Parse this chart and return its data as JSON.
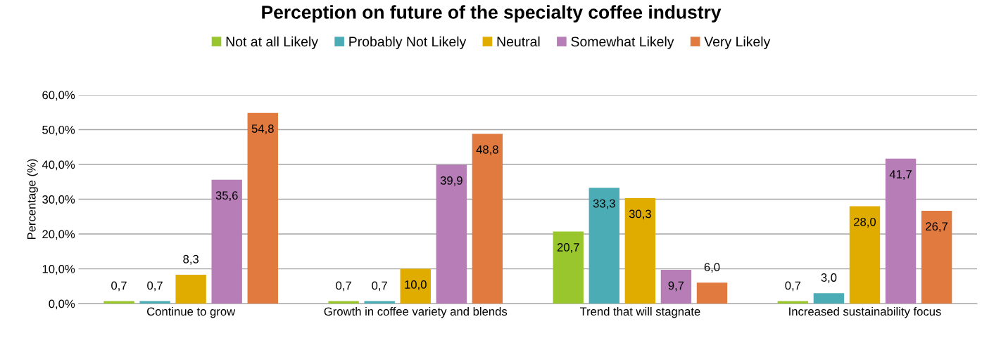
{
  "chart_data": {
    "type": "bar",
    "title": "Perception on future of the specialty coffee industry",
    "ylabel": "Percentage (%)",
    "categories": [
      "Continue to grow",
      "Growth in coffee variety and blends",
      "Trend that will stagnate",
      "Increased sustainability focus"
    ],
    "series": [
      {
        "name": "Not at all Likely",
        "color": "#99c62c",
        "values": [
          0.7,
          0.7,
          20.7,
          0.7
        ],
        "value_labels": [
          "0,7",
          "0,7",
          "20,7",
          "0,7"
        ]
      },
      {
        "name": "Probably Not Likely",
        "color": "#4bacb6",
        "values": [
          0.7,
          0.7,
          33.3,
          3.0
        ],
        "value_labels": [
          "0,7",
          "0,7",
          "33,3",
          "3,0"
        ]
      },
      {
        "name": "Neutral",
        "color": "#e0ac00",
        "values": [
          8.3,
          10.0,
          30.3,
          28.0
        ],
        "value_labels": [
          "8,3",
          "10,0",
          "30,3",
          "28,0"
        ]
      },
      {
        "name": "Somewhat Likely",
        "color": "#b67db7",
        "values": [
          35.6,
          39.9,
          9.7,
          41.7
        ],
        "value_labels": [
          "35,6",
          "39,9",
          "9,7",
          "41,7"
        ]
      },
      {
        "name": "Very Likely",
        "color": "#e07a3e",
        "values": [
          54.8,
          48.8,
          6.0,
          26.7
        ],
        "value_labels": [
          "54,8",
          "48,8",
          "6,0",
          "26,7"
        ]
      }
    ],
    "ylim": [
      0,
      60
    ],
    "yticks": [
      {
        "value": 0,
        "label": "0,0%"
      },
      {
        "value": 10,
        "label": "10,0%"
      },
      {
        "value": 20,
        "label": "20,0%"
      },
      {
        "value": 30,
        "label": "30,0%"
      },
      {
        "value": 40,
        "label": "40,0%"
      },
      {
        "value": 50,
        "label": "50,0%"
      },
      {
        "value": 60,
        "label": "60,0%"
      }
    ],
    "grid": "y",
    "legend": "top"
  }
}
